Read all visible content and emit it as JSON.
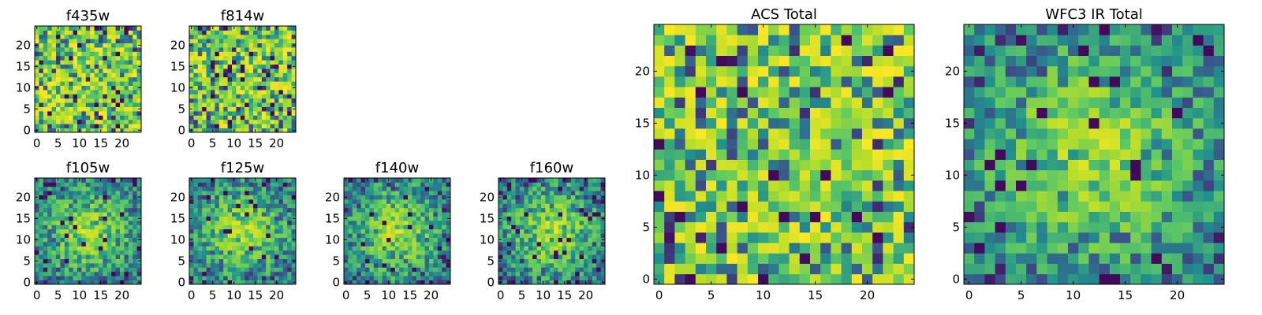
{
  "chart_data": [
    {
      "type": "heatmap",
      "title": "f435w",
      "grid_size": 25,
      "xlim": [
        0,
        24
      ],
      "ylim": [
        0,
        24
      ],
      "xticks": [
        "0",
        "5",
        "10",
        "15",
        "20"
      ],
      "yticks": [
        "0",
        "5",
        "10",
        "15",
        "20"
      ],
      "colormap": "viridis",
      "pattern": "noise",
      "seed": 11
    },
    {
      "type": "heatmap",
      "title": "f814w",
      "grid_size": 25,
      "xlim": [
        0,
        24
      ],
      "ylim": [
        0,
        24
      ],
      "xticks": [
        "0",
        "5",
        "10",
        "15",
        "20"
      ],
      "yticks": [
        "0",
        "5",
        "10",
        "15",
        "20"
      ],
      "colormap": "viridis",
      "pattern": "noise",
      "seed": 23
    },
    {
      "type": "heatmap",
      "title": "f105w",
      "grid_size": 25,
      "xlim": [
        0,
        24
      ],
      "ylim": [
        0,
        24
      ],
      "xticks": [
        "0",
        "5",
        "10",
        "15",
        "20"
      ],
      "yticks": [
        "0",
        "5",
        "10",
        "15",
        "20"
      ],
      "colormap": "viridis",
      "pattern": "centered",
      "seed": 37
    },
    {
      "type": "heatmap",
      "title": "f125w",
      "grid_size": 25,
      "xlim": [
        0,
        24
      ],
      "ylim": [
        0,
        24
      ],
      "xticks": [
        "0",
        "5",
        "10",
        "15",
        "20"
      ],
      "yticks": [
        "0",
        "5",
        "10",
        "15",
        "20"
      ],
      "colormap": "viridis",
      "pattern": "centered",
      "seed": 41
    },
    {
      "type": "heatmap",
      "title": "f140w",
      "grid_size": 25,
      "xlim": [
        0,
        24
      ],
      "ylim": [
        0,
        24
      ],
      "xticks": [
        "0",
        "5",
        "10",
        "15",
        "20"
      ],
      "yticks": [
        "0",
        "5",
        "10",
        "15",
        "20"
      ],
      "colormap": "viridis",
      "pattern": "centered",
      "seed": 53
    },
    {
      "type": "heatmap",
      "title": "f160w",
      "grid_size": 25,
      "xlim": [
        0,
        24
      ],
      "ylim": [
        0,
        24
      ],
      "xticks": [
        "0",
        "5",
        "10",
        "15",
        "20"
      ],
      "yticks": [
        "0",
        "5",
        "10",
        "15",
        "20"
      ],
      "colormap": "viridis",
      "pattern": "centered",
      "seed": 67
    },
    {
      "type": "heatmap",
      "title": "ACS Total",
      "grid_size": 25,
      "xlim": [
        0,
        24
      ],
      "ylim": [
        0,
        24
      ],
      "xticks": [
        "0",
        "5",
        "10",
        "15",
        "20"
      ],
      "yticks": [
        "0",
        "5",
        "10",
        "15",
        "20"
      ],
      "colormap": "viridis",
      "pattern": "noise",
      "seed": 79
    },
    {
      "type": "heatmap",
      "title": "WFC3 IR Total",
      "grid_size": 25,
      "xlim": [
        0,
        24
      ],
      "ylim": [
        0,
        24
      ],
      "xticks": [
        "0",
        "5",
        "10",
        "15",
        "20"
      ],
      "yticks": [
        "0",
        "5",
        "10",
        "15",
        "20"
      ],
      "colormap": "viridis",
      "pattern": "centered",
      "seed": 97
    }
  ],
  "colors": {
    "viridis": [
      "#440154",
      "#3b528b",
      "#21908d",
      "#5dc963",
      "#b8de29",
      "#fde725"
    ]
  }
}
